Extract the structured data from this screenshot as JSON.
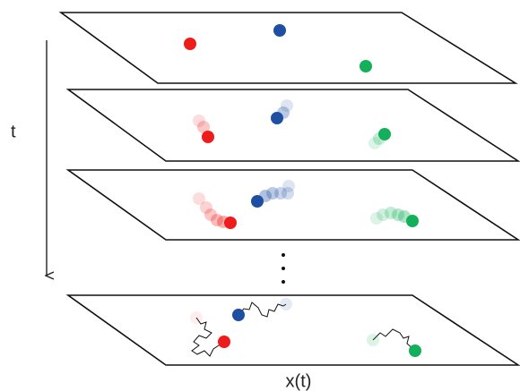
{
  "axis": {
    "time_label": "t",
    "space_label": "x(t)"
  }
}
